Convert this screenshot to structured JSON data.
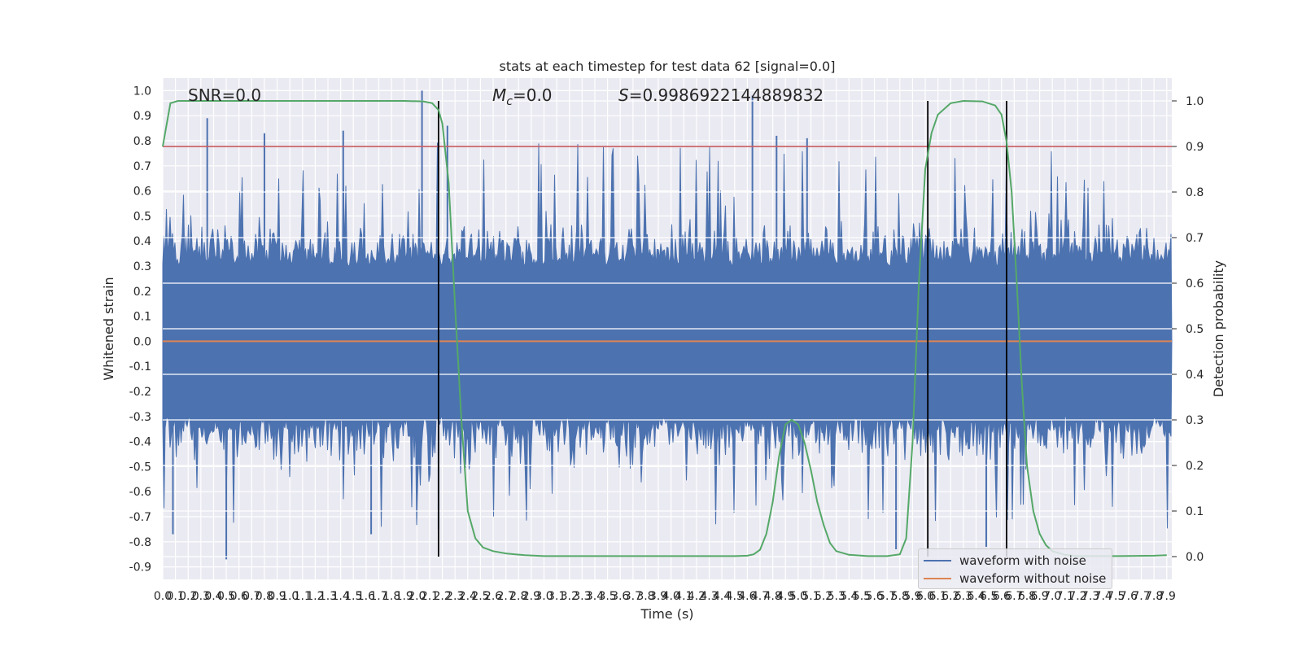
{
  "chart_data": {
    "type": "line",
    "title": "stats at each timestep for test data 62 [signal=0.0]",
    "xlabel": "Time (s)",
    "ylabel_left": "Whitened strain",
    "ylabel_right": "Detection probability",
    "xlim": [
      0.0,
      7.94
    ],
    "ylim_left": [
      -0.95,
      1.05
    ],
    "ylim_right": [
      -0.05,
      1.05
    ],
    "annotations": {
      "snr": "SNR=0.0",
      "mc_symbol": "M",
      "mc_sub": "c",
      "mc_value": "=0.0",
      "s_symbol": "S",
      "s_value": "=0.9986922144889832"
    },
    "x_ticks": [
      "0.0",
      "0.1",
      "0.2",
      "0.3",
      "0.4",
      "0.5",
      "0.6",
      "0.7",
      "0.8",
      "0.9",
      "1.0",
      "1.1",
      "1.2",
      "1.3",
      "1.4",
      "1.5",
      "1.6",
      "1.7",
      "1.8",
      "1.9",
      "2.0",
      "2.1",
      "2.2",
      "2.3",
      "2.4",
      "2.5",
      "2.6",
      "2.7",
      "2.8",
      "2.9",
      "3.0",
      "3.1",
      "3.2",
      "3.3",
      "3.4",
      "3.5",
      "3.6",
      "3.7",
      "3.8",
      "3.9",
      "4.0",
      "4.1",
      "4.2",
      "4.3",
      "4.4",
      "4.5",
      "4.6",
      "4.7",
      "4.8",
      "4.9",
      "5.0",
      "5.1",
      "5.2",
      "5.3",
      "5.4",
      "5.5",
      "5.6",
      "5.7",
      "5.8",
      "5.9",
      "6.0",
      "6.1",
      "6.2",
      "6.3",
      "6.4",
      "6.5",
      "6.6",
      "6.7",
      "6.8",
      "6.9",
      "7.0",
      "7.1",
      "7.2",
      "7.3",
      "7.4",
      "7.5",
      "7.6",
      "7.7",
      "7.8",
      "7.9"
    ],
    "y_ticks_left": [
      "-0.9",
      "-0.8",
      "-0.7",
      "-0.6",
      "-0.5",
      "-0.4",
      "-0.3",
      "-0.2",
      "-0.1",
      "0.0",
      "0.1",
      "0.2",
      "0.3",
      "0.4",
      "0.5",
      "0.6",
      "0.7",
      "0.8",
      "0.9",
      "1.0"
    ],
    "y_ticks_right": [
      "0.0",
      "0.1",
      "0.2",
      "0.3",
      "0.4",
      "0.5",
      "0.6",
      "0.7",
      "0.8",
      "0.9",
      "1.0"
    ],
    "threshold": {
      "axis": "right",
      "value": 0.9,
      "color": "#c44e52"
    },
    "vertical_lines": [
      2.17,
      6.02,
      6.64
    ],
    "series": [
      {
        "name": "waveform with noise",
        "axis": "left",
        "color": "#4c72b0",
        "description": "dense random noise, values roughly between -0.87 and 1.0",
        "peaks": [
          {
            "x": 0.35,
            "y": 0.89
          },
          {
            "x": 0.8,
            "y": 0.83
          },
          {
            "x": 1.42,
            "y": 0.84
          },
          {
            "x": 2.04,
            "y": 1.0
          },
          {
            "x": 2.24,
            "y": 0.86
          },
          {
            "x": 4.64,
            "y": 0.98
          },
          {
            "x": 4.83,
            "y": 0.82
          },
          {
            "x": 5.07,
            "y": 0.81
          }
        ],
        "troughs": [
          {
            "x": 0.08,
            "y": -0.77
          },
          {
            "x": 0.5,
            "y": -0.87
          },
          {
            "x": 1.64,
            "y": -0.77
          },
          {
            "x": 2.17,
            "y": -0.75
          },
          {
            "x": 5.77,
            "y": -0.83
          },
          {
            "x": 6.48,
            "y": -0.82
          }
        ]
      },
      {
        "name": "waveform without noise",
        "axis": "left",
        "color": "#dd8452",
        "x": [
          0.0,
          7.94
        ],
        "y": [
          0.0,
          0.0
        ]
      },
      {
        "name": "detection probability",
        "axis": "right",
        "color": "#55a868",
        "x": [
          0.0,
          0.06,
          0.12,
          0.3,
          0.6,
          1.0,
          1.5,
          1.9,
          2.05,
          2.12,
          2.17,
          2.2,
          2.25,
          2.3,
          2.35,
          2.4,
          2.46,
          2.52,
          2.6,
          2.7,
          2.85,
          3.0,
          3.5,
          4.0,
          4.5,
          4.6,
          4.65,
          4.7,
          4.75,
          4.8,
          4.85,
          4.9,
          4.95,
          5.0,
          5.05,
          5.1,
          5.15,
          5.2,
          5.25,
          5.3,
          5.4,
          5.55,
          5.7,
          5.8,
          5.85,
          5.9,
          5.95,
          6.0,
          6.05,
          6.1,
          6.2,
          6.3,
          6.45,
          6.55,
          6.6,
          6.64,
          6.68,
          6.72,
          6.76,
          6.8,
          6.85,
          6.9,
          6.95,
          7.0,
          7.1,
          7.2,
          7.5,
          7.8,
          7.9
        ],
        "y": [
          0.9,
          0.995,
          1.0,
          1.0,
          1.0,
          1.0,
          1.0,
          1.0,
          0.999,
          0.995,
          0.98,
          0.95,
          0.82,
          0.55,
          0.3,
          0.1,
          0.04,
          0.02,
          0.012,
          0.007,
          0.003,
          0.001,
          0.001,
          0.001,
          0.001,
          0.002,
          0.005,
          0.015,
          0.05,
          0.12,
          0.22,
          0.29,
          0.3,
          0.29,
          0.25,
          0.19,
          0.12,
          0.07,
          0.03,
          0.012,
          0.004,
          0.001,
          0.001,
          0.005,
          0.04,
          0.25,
          0.6,
          0.85,
          0.93,
          0.97,
          0.995,
          1.0,
          0.999,
          0.99,
          0.97,
          0.91,
          0.8,
          0.6,
          0.38,
          0.2,
          0.1,
          0.05,
          0.025,
          0.012,
          0.004,
          0.001,
          0.001,
          0.002,
          0.003
        ]
      }
    ]
  },
  "legend": {
    "noise_label": "waveform with noise",
    "clean_label": "waveform without noise",
    "noise_color": "#4c72b0",
    "clean_color": "#dd8452"
  }
}
